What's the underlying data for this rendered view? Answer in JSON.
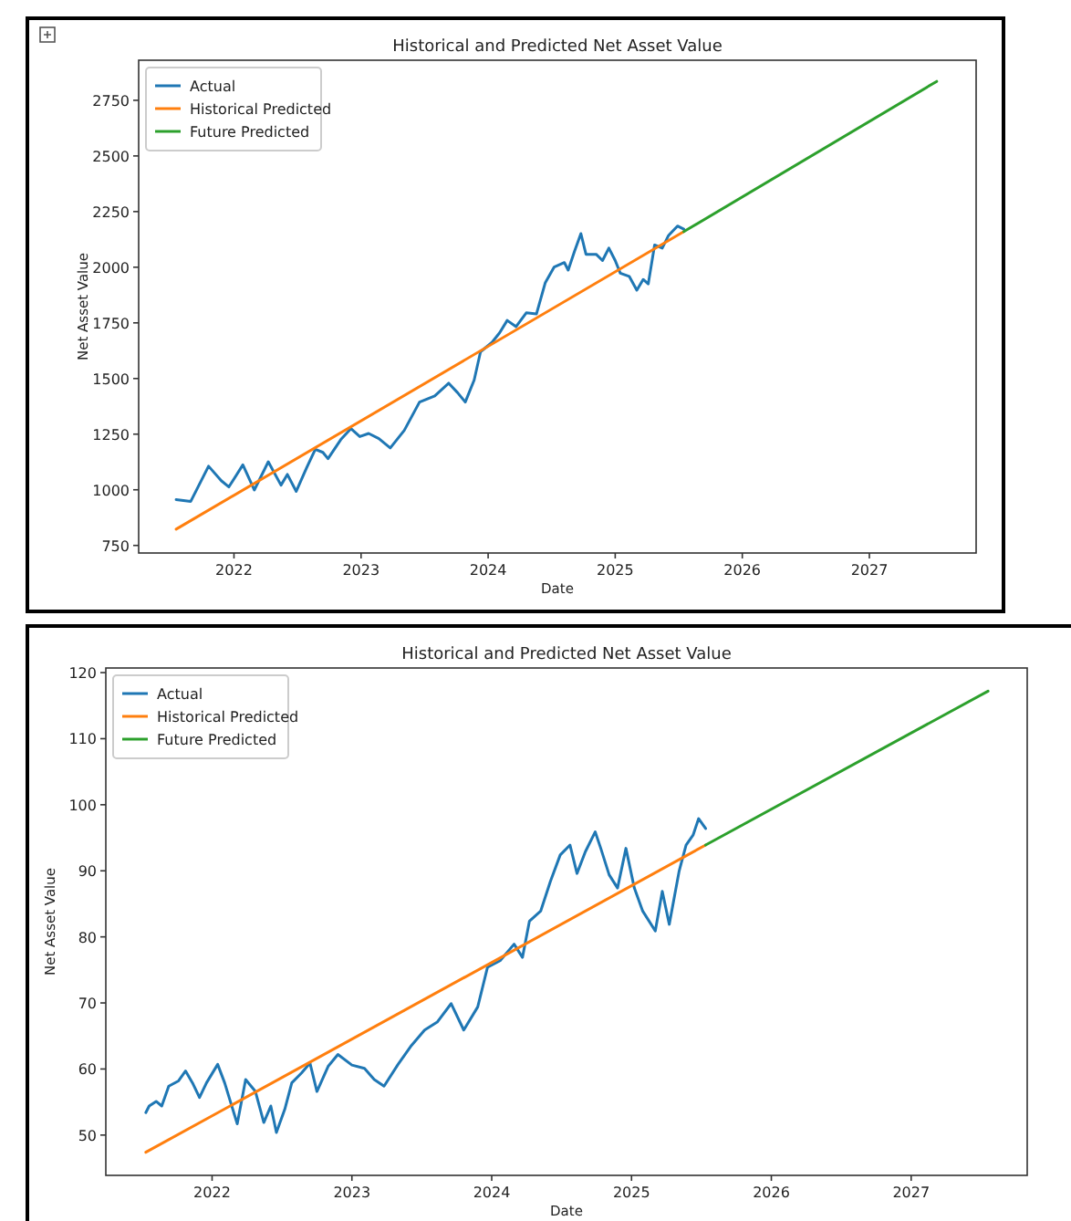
{
  "chart_data": [
    {
      "type": "line",
      "title": "Historical and Predicted Net Asset Value",
      "xlabel": "Date",
      "ylabel": "Net Asset Value",
      "xlim": [
        2021.25,
        2027.84
      ],
      "xticks": [
        2022,
        2023,
        2024,
        2025,
        2026,
        2027
      ],
      "ylim": [
        716,
        2930
      ],
      "yticks": [
        750,
        1000,
        1250,
        1500,
        1750,
        2000,
        2250,
        2500,
        2750
      ],
      "legend": "top left",
      "grid": false,
      "series": [
        {
          "name": "Actual",
          "color": "#1f77b4",
          "x": [
            2021.545,
            2021.66,
            2021.8,
            2021.9,
            2021.96,
            2022.07,
            2022.16,
            2022.27,
            2022.37,
            2022.42,
            2022.49,
            2022.57,
            2022.64,
            2022.7,
            2022.74,
            2022.84,
            2022.92,
            2022.99,
            2023.06,
            2023.14,
            2023.23,
            2023.34,
            2023.46,
            2023.58,
            2023.69,
            2023.76,
            2023.82,
            2023.89,
            2023.94,
            2024.03,
            2024.09,
            2024.15,
            2024.22,
            2024.3,
            2024.38,
            2024.45,
            2024.52,
            2024.6,
            2024.63,
            2024.68,
            2024.73,
            2024.77,
            2024.85,
            2024.9,
            2024.95,
            2025.0,
            2025.04,
            2025.11,
            2025.17,
            2025.22,
            2025.26,
            2025.31,
            2025.37,
            2025.42,
            2025.49,
            2025.54
          ],
          "values": [
            956,
            948,
            1106,
            1041,
            1013,
            1112,
            999,
            1126,
            1021,
            1069,
            993,
            1097,
            1182,
            1168,
            1140,
            1225,
            1275,
            1239,
            1253,
            1230,
            1188,
            1267,
            1394,
            1422,
            1479,
            1436,
            1394,
            1493,
            1620,
            1662,
            1705,
            1761,
            1733,
            1795,
            1790,
            1931,
            2001,
            2021,
            1987,
            2072,
            2151,
            2058,
            2058,
            2030,
            2086,
            2030,
            1973,
            1959,
            1897,
            1945,
            1925,
            2100,
            2086,
            2143,
            2185,
            2171
          ]
        },
        {
          "name": "Historical Predicted",
          "color": "#ff7f0e",
          "x": [
            2021.545,
            2025.54
          ],
          "values": [
            823,
            2160
          ]
        },
        {
          "name": "Future Predicted",
          "color": "#2ca02c",
          "x": [
            2025.54,
            2027.53
          ],
          "values": [
            2160,
            2835
          ]
        }
      ]
    },
    {
      "type": "line",
      "title": "Historical and Predicted Net Asset Value",
      "xlabel": "Date",
      "ylabel": "Net Asset Value",
      "xlim": [
        2021.24,
        2027.83
      ],
      "xticks": [
        2022,
        2023,
        2024,
        2025,
        2026,
        2027
      ],
      "ylim": [
        43.9,
        120.7
      ],
      "yticks": [
        50,
        60,
        70,
        80,
        90,
        100,
        110,
        120
      ],
      "legend": "top left",
      "grid": false,
      "series": [
        {
          "name": "Actual",
          "color": "#1f77b4",
          "x": [
            2021.526,
            2021.55,
            2021.6,
            2021.64,
            2021.69,
            2021.76,
            2021.81,
            2021.86,
            2021.91,
            2021.96,
            2022.04,
            2022.09,
            2022.18,
            2022.24,
            2022.31,
            2022.37,
            2022.42,
            2022.46,
            2022.52,
            2022.57,
            2022.64,
            2022.7,
            2022.75,
            2022.83,
            2022.9,
            2023.0,
            2023.09,
            2023.16,
            2023.23,
            2023.33,
            2023.42,
            2023.52,
            2023.61,
            2023.71,
            2023.8,
            2023.9,
            2023.97,
            2024.06,
            2024.16,
            2024.22,
            2024.27,
            2024.35,
            2024.42,
            2024.49,
            2024.56,
            2024.61,
            2024.67,
            2024.74,
            2024.78,
            2024.84,
            2024.9,
            2024.96,
            2025.02,
            2025.08,
            2025.17,
            2025.22,
            2025.27,
            2025.34,
            2025.39,
            2025.44,
            2025.48,
            2025.53
          ],
          "values": [
            53.4,
            54.4,
            55.1,
            54.4,
            57.4,
            58.2,
            59.7,
            57.9,
            55.7,
            57.9,
            60.7,
            57.9,
            51.7,
            58.4,
            56.6,
            51.9,
            54.4,
            50.4,
            53.9,
            57.9,
            59.4,
            60.9,
            56.6,
            60.4,
            62.2,
            60.6,
            60.1,
            58.4,
            57.4,
            60.7,
            63.4,
            65.9,
            67.1,
            69.9,
            65.9,
            69.4,
            75.4,
            76.4,
            78.9,
            76.9,
            82.4,
            83.9,
            88.4,
            92.4,
            93.9,
            89.6,
            92.9,
            95.9,
            93.4,
            89.4,
            87.4,
            93.4,
            87.4,
            83.9,
            80.9,
            86.9,
            81.9,
            89.9,
            93.9,
            95.4,
            97.9,
            96.4
          ]
        },
        {
          "name": "Historical Predicted",
          "color": "#ff7f0e",
          "x": [
            2021.526,
            2025.53
          ],
          "values": [
            47.4,
            93.9
          ]
        },
        {
          "name": "Future Predicted",
          "color": "#2ca02c",
          "x": [
            2025.53,
            2027.55
          ],
          "values": [
            93.9,
            117.2
          ]
        }
      ]
    }
  ]
}
